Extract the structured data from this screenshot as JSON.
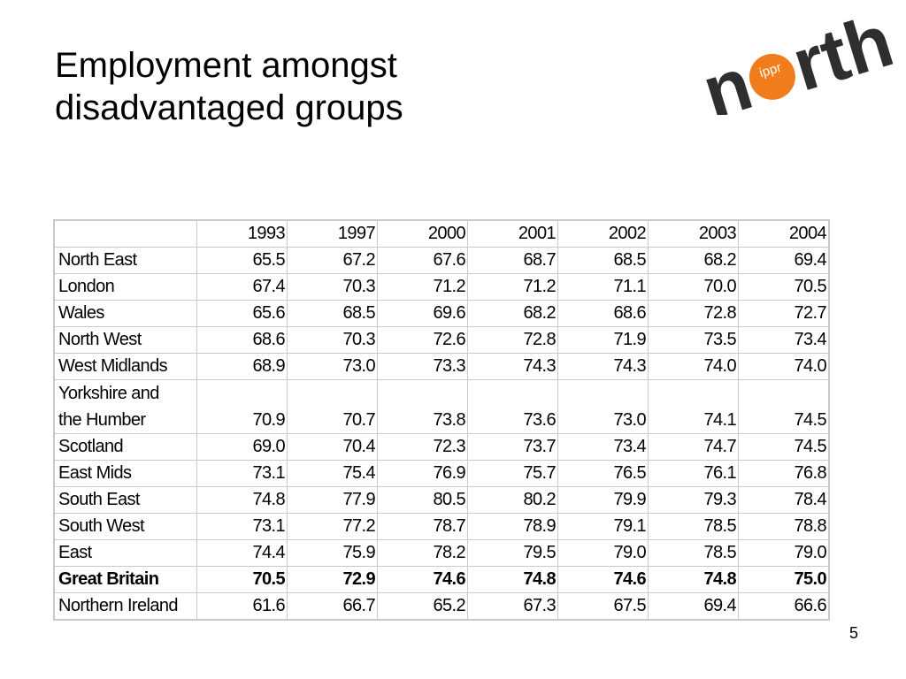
{
  "slide": {
    "title_line1": "Employment amongst",
    "title_line2": "disadvantaged groups",
    "page_number": "5"
  },
  "logo": {
    "ippr_text": "ippr",
    "word_left": "n",
    "word_right": "rth",
    "dot_color": "#f07c1b",
    "text_color": "#2e2e2e"
  },
  "table": {
    "years": [
      "1993",
      "1997",
      "2000",
      "2001",
      "2002",
      "2003",
      "2004"
    ],
    "rows": [
      {
        "region": "North East",
        "values": [
          "65.5",
          "67.2",
          "67.6",
          "68.7",
          "68.5",
          "68.2",
          "69.4"
        ]
      },
      {
        "region": "London",
        "values": [
          "67.4",
          "70.3",
          "71.2",
          "71.2",
          "71.1",
          "70.0",
          "70.5"
        ]
      },
      {
        "region": "Wales",
        "values": [
          "65.6",
          "68.5",
          "69.6",
          "68.2",
          "68.6",
          "72.8",
          "72.7"
        ]
      },
      {
        "region": "North West",
        "values": [
          "68.6",
          "70.3",
          "72.6",
          "72.8",
          "71.9",
          "73.5",
          "73.4"
        ]
      },
      {
        "region": "West Midlands",
        "values": [
          "68.9",
          "73.0",
          "73.3",
          "74.3",
          "74.3",
          "74.0",
          "74.0"
        ]
      },
      {
        "region_line1": "Yorkshire and",
        "region_line2": "the Humber",
        "values": [
          "70.9",
          "70.7",
          "73.8",
          "73.6",
          "73.0",
          "74.1",
          "74.5"
        ]
      },
      {
        "region": "Scotland",
        "values": [
          "69.0",
          "70.4",
          "72.3",
          "73.7",
          "73.4",
          "74.7",
          "74.5"
        ]
      },
      {
        "region": "East Mids",
        "values": [
          "73.1",
          "75.4",
          "76.9",
          "75.7",
          "76.5",
          "76.1",
          "76.8"
        ]
      },
      {
        "region": "South East",
        "values": [
          "74.8",
          "77.9",
          "80.5",
          "80.2",
          "79.9",
          "79.3",
          "78.4"
        ]
      },
      {
        "region": "South West",
        "values": [
          "73.1",
          "77.2",
          "78.7",
          "78.9",
          "79.1",
          "78.5",
          "78.8"
        ]
      },
      {
        "region": "East",
        "values": [
          "74.4",
          "75.9",
          "78.2",
          "79.5",
          "79.0",
          "78.5",
          "79.0"
        ]
      },
      {
        "region": "Great Britain",
        "values": [
          "70.5",
          "72.9",
          "74.6",
          "74.8",
          "74.6",
          "74.8",
          "75.0"
        ]
      },
      {
        "region": "Northern Ireland",
        "values": [
          "61.6",
          "66.7",
          "65.2",
          "67.3",
          "67.5",
          "69.4",
          "66.6"
        ]
      }
    ]
  }
}
